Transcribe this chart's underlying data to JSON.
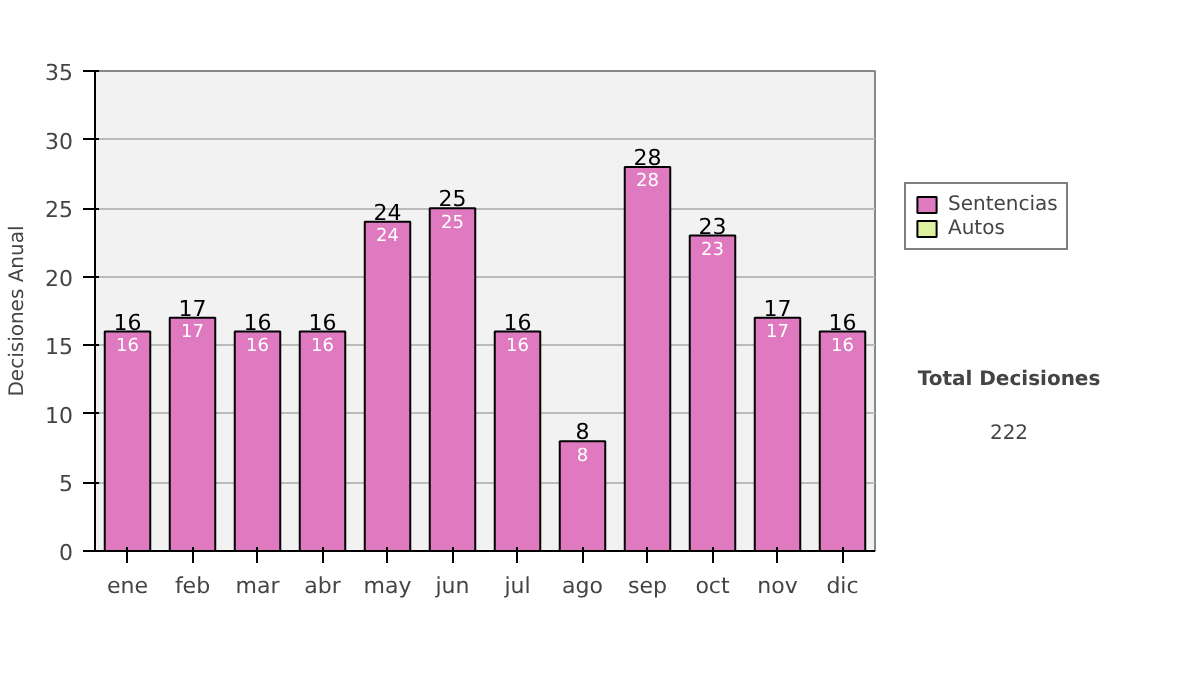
{
  "chart_data": {
    "type": "bar",
    "stacked": true,
    "ylabel": "Decisiones Anual",
    "categories": [
      "ene",
      "feb",
      "mar",
      "abr",
      "may",
      "jun",
      "jul",
      "ago",
      "sep",
      "oct",
      "nov",
      "dic"
    ],
    "series": [
      {
        "name": "Sentencias",
        "color": "#e07ac0",
        "values": [
          16,
          17,
          16,
          16,
          24,
          25,
          16,
          8,
          28,
          23,
          17,
          16
        ]
      },
      {
        "name": "Autos",
        "color": "#ddf0a0",
        "values": [
          null,
          null,
          null,
          null,
          null,
          null,
          null,
          null,
          null,
          null,
          null,
          null
        ]
      }
    ],
    "totals": [
      "16",
      "17",
      "16",
      "16",
      "24",
      "25",
      "16",
      "8",
      "28",
      "23",
      "17",
      "16"
    ],
    "data_labels": true,
    "ylim": [
      0,
      35
    ],
    "yticks": [
      0,
      5,
      10,
      15,
      20,
      25,
      30,
      35
    ],
    "grid": "y",
    "legend": "right",
    "annotations": [
      "Total Decisiones",
      "222"
    ]
  }
}
